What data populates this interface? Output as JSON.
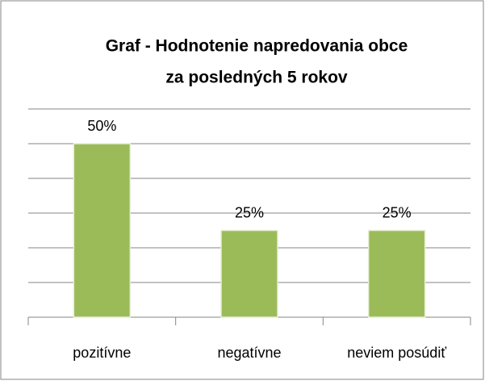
{
  "chart_data": {
    "type": "bar",
    "title": [
      "Graf - Hodnotenie napredovania obce",
      "za posledných 5 rokov"
    ],
    "categories": [
      "pozitívne",
      "negatívne",
      "neviem posúdiť"
    ],
    "values": [
      50,
      25,
      25
    ],
    "value_labels": [
      "50%",
      "25%",
      "25%"
    ],
    "color": "#9bbb59",
    "ylim": [
      0,
      60
    ],
    "yticks": [
      0,
      10,
      20,
      30,
      40,
      50,
      60
    ],
    "grid": true
  }
}
